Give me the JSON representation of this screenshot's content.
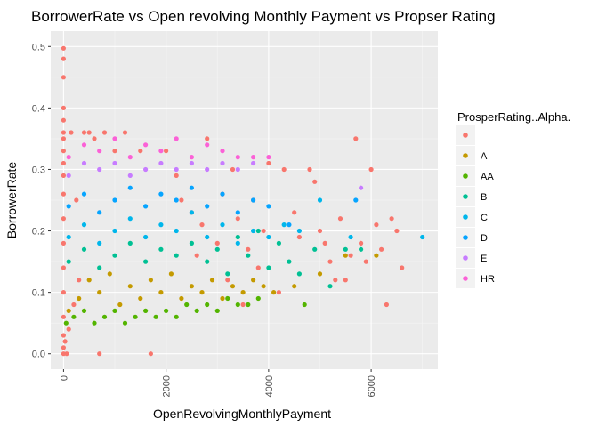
{
  "chart_data": {
    "type": "scatter",
    "title": "BorrowerRate vs Open revolving Monthly Payment vs Propser Rating",
    "xlabel": "OpenRevolvingMonthlyPayment",
    "ylabel": "BorrowerRate",
    "xlim": [
      -250,
      7300
    ],
    "ylim": [
      -0.025,
      0.525
    ],
    "xticks": [
      0,
      2000,
      4000,
      6000
    ],
    "xtick_labels": [
      "0",
      "2000",
      "4000",
      "6000"
    ],
    "yticks": [
      0.0,
      0.1,
      0.2,
      0.3,
      0.4,
      0.5
    ],
    "ytick_labels": [
      "0.0",
      "0.1",
      "0.2",
      "0.3",
      "0.4",
      "0.5"
    ],
    "grid": true,
    "background": "#ebebeb",
    "legend": {
      "title": "ProsperRating..Alpha.",
      "placement": "right",
      "entries": [
        {
          "label": "",
          "color": "#f8766d"
        },
        {
          "label": "A",
          "color": "#c49a00"
        },
        {
          "label": "AA",
          "color": "#53b400"
        },
        {
          "label": "B",
          "color": "#00c094"
        },
        {
          "label": "C",
          "color": "#00b6eb"
        },
        {
          "label": "D",
          "color": "#06a4ff"
        },
        {
          "label": "E",
          "color": "#c77cff"
        },
        {
          "label": "HR",
          "color": "#fb61d7"
        }
      ]
    },
    "series": [
      {
        "name": "",
        "color": "#f8766d",
        "points": [
          [
            0,
            0.497
          ],
          [
            0,
            0.48
          ],
          [
            0,
            0.45
          ],
          [
            0,
            0.4
          ],
          [
            0,
            0.38
          ],
          [
            0,
            0.36
          ],
          [
            0,
            0.35
          ],
          [
            0,
            0.33
          ],
          [
            0,
            0.31
          ],
          [
            0,
            0.29
          ],
          [
            0,
            0.26
          ],
          [
            0,
            0.22
          ],
          [
            0,
            0.18
          ],
          [
            0,
            0.14
          ],
          [
            0,
            0.1
          ],
          [
            0,
            0.06
          ],
          [
            0,
            0.03
          ],
          [
            0,
            0.01
          ],
          [
            0,
            0.0
          ],
          [
            30,
            0.02
          ],
          [
            60,
            0.0
          ],
          [
            100,
            0.04
          ],
          [
            150,
            0.36
          ],
          [
            200,
            0.08
          ],
          [
            250,
            0.25
          ],
          [
            300,
            0.12
          ],
          [
            400,
            0.36
          ],
          [
            500,
            0.36
          ],
          [
            600,
            0.35
          ],
          [
            700,
            0.0
          ],
          [
            800,
            0.36
          ],
          [
            1000,
            0.33
          ],
          [
            1200,
            0.36
          ],
          [
            1500,
            0.33
          ],
          [
            1700,
            0.0
          ],
          [
            2000,
            0.33
          ],
          [
            2200,
            0.29
          ],
          [
            2300,
            0.25
          ],
          [
            2500,
            0.23
          ],
          [
            2600,
            0.16
          ],
          [
            2700,
            0.21
          ],
          [
            2800,
            0.35
          ],
          [
            3000,
            0.18
          ],
          [
            3100,
            0.26
          ],
          [
            3200,
            0.12
          ],
          [
            3300,
            0.3
          ],
          [
            3400,
            0.22
          ],
          [
            3500,
            0.08
          ],
          [
            3600,
            0.17
          ],
          [
            3700,
            0.25
          ],
          [
            3800,
            0.14
          ],
          [
            3900,
            0.2
          ],
          [
            4000,
            0.31
          ],
          [
            4200,
            0.1
          ],
          [
            4300,
            0.3
          ],
          [
            4500,
            0.23
          ],
          [
            4600,
            0.19
          ],
          [
            4800,
            0.3
          ],
          [
            4900,
            0.28
          ],
          [
            5000,
            0.2
          ],
          [
            5100,
            0.18
          ],
          [
            5200,
            0.15
          ],
          [
            5300,
            0.12
          ],
          [
            5400,
            0.22
          ],
          [
            5500,
            0.12
          ],
          [
            5600,
            0.16
          ],
          [
            5700,
            0.35
          ],
          [
            5800,
            0.18
          ],
          [
            5900,
            0.15
          ],
          [
            6000,
            0.3
          ],
          [
            6100,
            0.21
          ],
          [
            6200,
            0.17
          ],
          [
            6300,
            0.08
          ],
          [
            6400,
            0.22
          ],
          [
            6500,
            0.2
          ],
          [
            6600,
            0.14
          ]
        ]
      },
      {
        "name": "A",
        "color": "#c49a00",
        "points": [
          [
            100,
            0.07
          ],
          [
            300,
            0.09
          ],
          [
            500,
            0.12
          ],
          [
            700,
            0.1
          ],
          [
            900,
            0.13
          ],
          [
            1100,
            0.08
          ],
          [
            1300,
            0.11
          ],
          [
            1500,
            0.09
          ],
          [
            1700,
            0.12
          ],
          [
            1900,
            0.1
          ],
          [
            2100,
            0.13
          ],
          [
            2300,
            0.09
          ],
          [
            2500,
            0.11
          ],
          [
            2700,
            0.1
          ],
          [
            2900,
            0.12
          ],
          [
            3100,
            0.09
          ],
          [
            3300,
            0.11
          ],
          [
            3500,
            0.1
          ],
          [
            3700,
            0.12
          ],
          [
            3900,
            0.11
          ],
          [
            4100,
            0.1
          ],
          [
            4500,
            0.11
          ],
          [
            5000,
            0.13
          ],
          [
            5500,
            0.16
          ],
          [
            6100,
            0.16
          ]
        ]
      },
      {
        "name": "AA",
        "color": "#53b400",
        "points": [
          [
            50,
            0.05
          ],
          [
            200,
            0.06
          ],
          [
            400,
            0.07
          ],
          [
            600,
            0.05
          ],
          [
            800,
            0.06
          ],
          [
            1000,
            0.07
          ],
          [
            1200,
            0.05
          ],
          [
            1400,
            0.06
          ],
          [
            1600,
            0.07
          ],
          [
            1800,
            0.06
          ],
          [
            2000,
            0.07
          ],
          [
            2200,
            0.06
          ],
          [
            2400,
            0.08
          ],
          [
            2600,
            0.07
          ],
          [
            2800,
            0.08
          ],
          [
            3000,
            0.07
          ],
          [
            3200,
            0.09
          ],
          [
            3400,
            0.08
          ],
          [
            3600,
            0.08
          ],
          [
            3800,
            0.09
          ],
          [
            4700,
            0.08
          ]
        ]
      },
      {
        "name": "B",
        "color": "#00c094",
        "points": [
          [
            100,
            0.15
          ],
          [
            400,
            0.17
          ],
          [
            700,
            0.14
          ],
          [
            1000,
            0.16
          ],
          [
            1300,
            0.18
          ],
          [
            1600,
            0.15
          ],
          [
            1900,
            0.17
          ],
          [
            2200,
            0.16
          ],
          [
            2500,
            0.18
          ],
          [
            2800,
            0.15
          ],
          [
            3000,
            0.17
          ],
          [
            3200,
            0.13
          ],
          [
            3400,
            0.19
          ],
          [
            3600,
            0.16
          ],
          [
            3800,
            0.2
          ],
          [
            4000,
            0.14
          ],
          [
            4200,
            0.18
          ],
          [
            4400,
            0.15
          ],
          [
            4600,
            0.13
          ],
          [
            4900,
            0.17
          ],
          [
            5200,
            0.11
          ],
          [
            5500,
            0.17
          ],
          [
            5800,
            0.17
          ]
        ]
      },
      {
        "name": "C",
        "color": "#00b6eb",
        "points": [
          [
            100,
            0.19
          ],
          [
            400,
            0.21
          ],
          [
            700,
            0.18
          ],
          [
            1000,
            0.2
          ],
          [
            1300,
            0.22
          ],
          [
            1600,
            0.19
          ],
          [
            1900,
            0.21
          ],
          [
            2200,
            0.2
          ],
          [
            2500,
            0.23
          ],
          [
            2800,
            0.19
          ],
          [
            3100,
            0.21
          ],
          [
            3400,
            0.18
          ],
          [
            3700,
            0.2
          ],
          [
            4000,
            0.19
          ],
          [
            4300,
            0.21
          ],
          [
            4600,
            0.2
          ],
          [
            5000,
            0.25
          ],
          [
            5600,
            0.19
          ],
          [
            7000,
            0.19
          ]
        ]
      },
      {
        "name": "D",
        "color": "#06a4ff",
        "points": [
          [
            100,
            0.24
          ],
          [
            400,
            0.26
          ],
          [
            700,
            0.23
          ],
          [
            1000,
            0.25
          ],
          [
            1300,
            0.27
          ],
          [
            1600,
            0.24
          ],
          [
            1900,
            0.26
          ],
          [
            2200,
            0.25
          ],
          [
            2500,
            0.27
          ],
          [
            2800,
            0.24
          ],
          [
            3100,
            0.26
          ],
          [
            3400,
            0.23
          ],
          [
            3700,
            0.25
          ],
          [
            4000,
            0.24
          ],
          [
            4400,
            0.21
          ],
          [
            5700,
            0.25
          ]
        ]
      },
      {
        "name": "E",
        "color": "#c77cff",
        "points": [
          [
            100,
            0.29
          ],
          [
            400,
            0.31
          ],
          [
            700,
            0.3
          ],
          [
            1000,
            0.31
          ],
          [
            1300,
            0.29
          ],
          [
            1600,
            0.3
          ],
          [
            1900,
            0.31
          ],
          [
            2200,
            0.3
          ],
          [
            2500,
            0.31
          ],
          [
            2800,
            0.3
          ],
          [
            3100,
            0.31
          ],
          [
            3400,
            0.3
          ],
          [
            3700,
            0.31
          ],
          [
            5800,
            0.27
          ]
        ]
      },
      {
        "name": "HR",
        "color": "#fb61d7",
        "points": [
          [
            100,
            0.32
          ],
          [
            400,
            0.34
          ],
          [
            700,
            0.33
          ],
          [
            1000,
            0.35
          ],
          [
            1300,
            0.32
          ],
          [
            1600,
            0.34
          ],
          [
            1900,
            0.33
          ],
          [
            2200,
            0.35
          ],
          [
            2500,
            0.32
          ],
          [
            2800,
            0.34
          ],
          [
            3100,
            0.33
          ],
          [
            3400,
            0.32
          ],
          [
            3700,
            0.32
          ],
          [
            4000,
            0.32
          ]
        ]
      }
    ]
  }
}
